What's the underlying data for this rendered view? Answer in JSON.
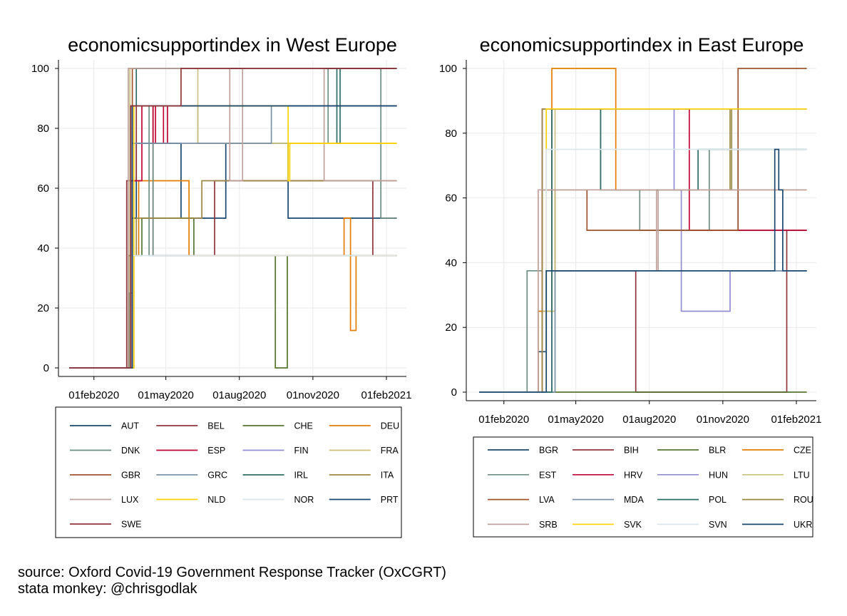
{
  "footer": {
    "line1": "source: Oxford Covid-19 Government Response Tracker (OxCGRT)",
    "line2": "stata monkey: @chrisgodlak"
  },
  "chart_data": [
    {
      "type": "line",
      "title": "economicsupportindex in West Europe",
      "xlabel": "",
      "ylabel": "",
      "ylim": [
        0,
        100
      ],
      "yticks": [
        0,
        20,
        40,
        60,
        80,
        100
      ],
      "xlim": [
        "2020-01-01",
        "2021-02-14"
      ],
      "xticks": [
        {
          "date": "2020-02-01",
          "label": "01feb2020"
        },
        {
          "date": "2020-05-01",
          "label": "01may2020"
        },
        {
          "date": "2020-08-01",
          "label": "01aug2020"
        },
        {
          "date": "2020-11-01",
          "label": "01nov2020"
        },
        {
          "date": "2021-02-01",
          "label": "01feb2021"
        }
      ],
      "grid": true,
      "legend_position": "bottom",
      "series": [
        {
          "name": "AUT",
          "color": "#1a476f",
          "steps": [
            [
              "2020-01-01",
              0
            ],
            [
              "2020-03-16",
              25
            ],
            [
              "2020-03-20",
              50
            ],
            [
              "2020-03-25",
              75
            ],
            [
              "2020-05-20",
              50
            ],
            [
              "2020-07-15",
              75
            ],
            [
              "2020-10-01",
              50
            ],
            [
              "2021-02-14",
              50
            ]
          ]
        },
        {
          "name": "BEL",
          "color": "#90353b",
          "steps": [
            [
              "2020-01-01",
              0
            ],
            [
              "2020-03-13",
              62.5
            ],
            [
              "2020-03-25",
              87.5
            ],
            [
              "2020-04-15",
              37.5
            ],
            [
              "2020-07-01",
              62.5
            ],
            [
              "2021-01-15",
              37.5
            ],
            [
              "2021-02-14",
              37.5
            ]
          ]
        },
        {
          "name": "CHE",
          "color": "#55752f",
          "steps": [
            [
              "2020-01-01",
              0
            ],
            [
              "2020-03-17",
              37.5
            ],
            [
              "2020-04-01",
              50
            ],
            [
              "2020-06-05",
              37.5
            ],
            [
              "2020-09-15",
              0
            ],
            [
              "2020-09-30",
              37.5
            ],
            [
              "2021-02-14",
              37.5
            ]
          ]
        },
        {
          "name": "DEU",
          "color": "#e37e00",
          "steps": [
            [
              "2020-01-01",
              0
            ],
            [
              "2020-03-22",
              37.5
            ],
            [
              "2020-03-28",
              62.5
            ],
            [
              "2020-05-30",
              37.5
            ],
            [
              "2020-12-10",
              50
            ],
            [
              "2020-12-18",
              12.5
            ],
            [
              "2020-12-25",
              37.5
            ],
            [
              "2021-02-14",
              37.5
            ]
          ]
        },
        {
          "name": "DNK",
          "color": "#6e8e84",
          "steps": [
            [
              "2020-01-01",
              0
            ],
            [
              "2020-03-15",
              37.5
            ],
            [
              "2020-03-20",
              87.5
            ],
            [
              "2020-04-10",
              37.5
            ],
            [
              "2020-04-15",
              87.5
            ],
            [
              "2020-06-10",
              75
            ],
            [
              "2020-11-20",
              100
            ],
            [
              "2021-01-25",
              50
            ],
            [
              "2021-02-14",
              50
            ]
          ]
        },
        {
          "name": "ESP",
          "color": "#c10534",
          "steps": [
            [
              "2020-01-01",
              0
            ],
            [
              "2020-03-18",
              62.5
            ],
            [
              "2020-04-01",
              87.5
            ],
            [
              "2020-04-15",
              75
            ],
            [
              "2020-04-18",
              87.5
            ],
            [
              "2020-04-28",
              75
            ],
            [
              "2020-05-03",
              87.5
            ],
            [
              "2021-02-14",
              87.5
            ]
          ]
        },
        {
          "name": "FIN",
          "color": "#938dd2",
          "steps": [
            [
              "2020-01-01",
              0
            ],
            [
              "2020-03-20",
              87.5
            ],
            [
              "2021-02-14",
              87.5
            ]
          ]
        },
        {
          "name": "FRA",
          "color": "#cac27e",
          "steps": [
            [
              "2020-01-01",
              0
            ],
            [
              "2020-03-17",
              100
            ],
            [
              "2020-06-10",
              75
            ],
            [
              "2021-02-14",
              75
            ]
          ]
        },
        {
          "name": "GBR",
          "color": "#a0522d",
          "steps": [
            [
              "2020-01-01",
              0
            ],
            [
              "2020-03-20",
              100
            ],
            [
              "2021-02-14",
              100
            ]
          ]
        },
        {
          "name": "GRC",
          "color": "#7b92a8",
          "steps": [
            [
              "2020-01-01",
              0
            ],
            [
              "2020-03-20",
              75
            ],
            [
              "2020-09-10",
              87.5
            ],
            [
              "2021-02-14",
              87.5
            ]
          ]
        },
        {
          "name": "IRL",
          "color": "#2d6d66",
          "steps": [
            [
              "2020-01-01",
              0
            ],
            [
              "2020-03-18",
              87.5
            ],
            [
              "2020-03-25",
              100
            ],
            [
              "2020-12-01",
              75
            ],
            [
              "2020-12-05",
              100
            ],
            [
              "2021-02-14",
              100
            ]
          ]
        },
        {
          "name": "ITA",
          "color": "#9c8847",
          "steps": [
            [
              "2020-01-01",
              0
            ],
            [
              "2020-03-15",
              37.5
            ],
            [
              "2020-03-25",
              50
            ],
            [
              "2020-06-15",
              62.5
            ],
            [
              "2021-02-14",
              62.5
            ]
          ]
        },
        {
          "name": "LUX",
          "color": "#bfa19c",
          "steps": [
            [
              "2020-01-01",
              0
            ],
            [
              "2020-03-15",
              100
            ],
            [
              "2020-07-20",
              62.5
            ],
            [
              "2020-08-05",
              100
            ],
            [
              "2020-11-15",
              62.5
            ],
            [
              "2021-02-14",
              62.5
            ]
          ]
        },
        {
          "name": "NLD",
          "color": "#ffd200",
          "steps": [
            [
              "2020-01-01",
              0
            ],
            [
              "2020-03-22",
              87.5
            ],
            [
              "2020-10-01",
              62.5
            ],
            [
              "2020-10-03",
              75
            ],
            [
              "2021-02-14",
              75
            ]
          ]
        },
        {
          "name": "NOR",
          "color": "#d9e6eb",
          "steps": [
            [
              "2020-01-01",
              0
            ],
            [
              "2020-03-20",
              37.5
            ],
            [
              "2021-02-14",
              37.5
            ]
          ]
        },
        {
          "name": "PRT",
          "color": "#1a476f",
          "steps": [
            [
              "2020-01-01",
              0
            ],
            [
              "2020-03-20",
              87.5
            ],
            [
              "2021-02-14",
              87.5
            ]
          ]
        },
        {
          "name": "SWE",
          "color": "#90353b",
          "steps": [
            [
              "2020-01-01",
              0
            ],
            [
              "2020-03-18",
              87.5
            ],
            [
              "2020-05-20",
              100
            ],
            [
              "2021-02-14",
              100
            ]
          ]
        }
      ]
    },
    {
      "type": "line",
      "title": "economicsupportindex in East Europe",
      "xlabel": "",
      "ylabel": "",
      "ylim": [
        0,
        100
      ],
      "yticks": [
        0,
        20,
        40,
        60,
        80,
        100
      ],
      "xlim": [
        "2020-01-01",
        "2021-02-14"
      ],
      "xticks": [
        {
          "date": "2020-02-01",
          "label": "01feb2020"
        },
        {
          "date": "2020-05-01",
          "label": "01may2020"
        },
        {
          "date": "2020-08-01",
          "label": "01aug2020"
        },
        {
          "date": "2020-11-01",
          "label": "01nov2020"
        },
        {
          "date": "2021-02-01",
          "label": "01feb2021"
        }
      ],
      "grid": true,
      "legend_position": "bottom",
      "series": [
        {
          "name": "BGR",
          "color": "#1a476f",
          "steps": [
            [
              "2020-01-01",
              0
            ],
            [
              "2020-03-15",
              12.5
            ],
            [
              "2020-03-25",
              37.5
            ],
            [
              "2021-02-14",
              37.5
            ]
          ]
        },
        {
          "name": "BIH",
          "color": "#90353b",
          "steps": [
            [
              "2020-01-01",
              0
            ],
            [
              "2020-03-20",
              62.5
            ],
            [
              "2020-04-05",
              37.5
            ],
            [
              "2020-07-15",
              0
            ],
            [
              "2021-01-20",
              50
            ],
            [
              "2021-02-14",
              50
            ]
          ]
        },
        {
          "name": "BLR",
          "color": "#55752f",
          "steps": [
            [
              "2020-01-01",
              0
            ],
            [
              "2021-02-14",
              0
            ]
          ]
        },
        {
          "name": "CZE",
          "color": "#e37e00",
          "steps": [
            [
              "2020-01-01",
              0
            ],
            [
              "2020-03-15",
              25
            ],
            [
              "2020-04-01",
              100
            ],
            [
              "2020-06-20",
              62.5
            ],
            [
              "2021-02-14",
              62.5
            ]
          ]
        },
        {
          "name": "EST",
          "color": "#6e8e84",
          "steps": [
            [
              "2020-01-01",
              0
            ],
            [
              "2020-03-01",
              37.5
            ],
            [
              "2020-03-20",
              87.5
            ],
            [
              "2020-06-01",
              62.5
            ],
            [
              "2020-07-20",
              50
            ],
            [
              "2020-10-15",
              75
            ],
            [
              "2020-11-20",
              50
            ],
            [
              "2021-02-14",
              50
            ]
          ]
        },
        {
          "name": "HRV",
          "color": "#c10534",
          "steps": [
            [
              "2020-01-01",
              0
            ],
            [
              "2020-03-20",
              87.5
            ],
            [
              "2020-09-20",
              50
            ],
            [
              "2021-02-14",
              50
            ]
          ]
        },
        {
          "name": "HUN",
          "color": "#938dd2",
          "steps": [
            [
              "2020-01-01",
              0
            ],
            [
              "2020-04-01",
              87.5
            ],
            [
              "2020-09-01",
              62.5
            ],
            [
              "2020-09-10",
              25
            ],
            [
              "2020-11-10",
              37.5
            ],
            [
              "2021-02-14",
              37.5
            ]
          ]
        },
        {
          "name": "LTU",
          "color": "#cac27e",
          "steps": [
            [
              "2020-01-01",
              0
            ],
            [
              "2020-03-20",
              25
            ],
            [
              "2020-04-05",
              87.5
            ],
            [
              "2021-02-14",
              87.5
            ]
          ]
        },
        {
          "name": "LVA",
          "color": "#a0522d",
          "steps": [
            [
              "2020-01-01",
              0
            ],
            [
              "2020-03-20",
              62.5
            ],
            [
              "2020-05-15",
              50
            ],
            [
              "2020-09-20",
              50
            ],
            [
              "2020-11-20",
              100
            ],
            [
              "2021-02-14",
              100
            ]
          ]
        },
        {
          "name": "MDA",
          "color": "#7b92a8",
          "steps": [
            [
              "2020-01-01",
              0
            ],
            [
              "2020-04-05",
              37.5
            ],
            [
              "2021-02-14",
              37.5
            ]
          ]
        },
        {
          "name": "POL",
          "color": "#2d6d66",
          "steps": [
            [
              "2020-01-01",
              0
            ],
            [
              "2020-04-01",
              87.5
            ],
            [
              "2020-06-01",
              62.5
            ],
            [
              "2020-10-01",
              75
            ],
            [
              "2021-02-14",
              75
            ]
          ]
        },
        {
          "name": "ROU",
          "color": "#9c8847",
          "steps": [
            [
              "2020-01-01",
              0
            ],
            [
              "2020-03-20",
              87.5
            ],
            [
              "2020-11-10",
              62.5
            ],
            [
              "2020-11-12",
              87.5
            ],
            [
              "2021-02-14",
              87.5
            ]
          ]
        },
        {
          "name": "SRB",
          "color": "#bfa19c",
          "steps": [
            [
              "2020-01-01",
              0
            ],
            [
              "2020-03-15",
              62.5
            ],
            [
              "2020-08-10",
              37.5
            ],
            [
              "2020-08-12",
              62.5
            ],
            [
              "2021-02-14",
              62.5
            ]
          ]
        },
        {
          "name": "SVK",
          "color": "#ffd200",
          "steps": [
            [
              "2020-01-01",
              0
            ],
            [
              "2020-03-25",
              87.5
            ],
            [
              "2021-02-14",
              87.5
            ]
          ]
        },
        {
          "name": "SVN",
          "color": "#d9e6eb",
          "steps": [
            [
              "2020-01-01",
              0
            ],
            [
              "2020-03-25",
              75
            ],
            [
              "2021-02-14",
              75
            ]
          ]
        },
        {
          "name": "UKR",
          "color": "#1a476f",
          "steps": [
            [
              "2020-01-01",
              0
            ],
            [
              "2020-03-25",
              37.5
            ],
            [
              "2021-01-05",
              75
            ],
            [
              "2021-01-10",
              62.5
            ],
            [
              "2021-01-15",
              37.5
            ],
            [
              "2021-02-14",
              37.5
            ]
          ]
        }
      ]
    }
  ]
}
